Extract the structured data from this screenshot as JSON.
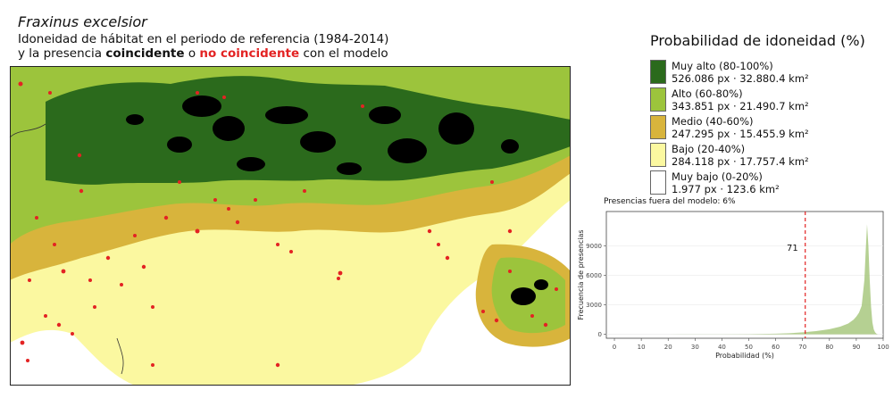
{
  "header": {
    "species": "Fraxinus excelsior",
    "line1": "Idoneidad de hábitat en el periodo de referencia (1984-2014)",
    "line2_pre": "y la presencia ",
    "line2_bold": "coincidente",
    "line2_mid": " o ",
    "line2_red": "no coincidente",
    "line2_post": " con el modelo"
  },
  "legend": {
    "title": "Probabilidad de idoneidad (%)",
    "items": [
      {
        "label": "Muy alto (80-100%)",
        "px": "526.086 px",
        "sep": "·",
        "area": "32.880.4 km²",
        "color": "#2b6a1c"
      },
      {
        "label": "Alto (60-80%)",
        "px": "343.851 px",
        "sep": "·",
        "area": "21.490.7 km²",
        "color": "#9cc43c"
      },
      {
        "label": "Medio (40-60%)",
        "px": "247.295 px",
        "sep": "·",
        "area": "15.455.9 km²",
        "color": "#d8b43c"
      },
      {
        "label": "Bajo (20-40%)",
        "px": "284.118 px",
        "sep": "·",
        "area": "17.757.4 km²",
        "color": "#fbf8a0"
      },
      {
        "label": "Muy bajo (0-20%)",
        "px": "1.977 px",
        "sep": "·",
        "area": "123.6 km²",
        "color": "#ffffff"
      }
    ]
  },
  "histogram": {
    "title": "Presencias fuera del modelo: 6%",
    "xlabel": "Probabilidad (%)",
    "ylabel": "Frecuencia de presencias",
    "threshold": 71,
    "threshold_label": "71"
  },
  "colors": {
    "muy_alto": "#2b6a1c",
    "alto": "#9cc43c",
    "medio": "#d8b43c",
    "bajo": "#fbf8a0",
    "presence_match": "#000000",
    "presence_mismatch": "#e32323",
    "density_fill": "#9cc06e",
    "threshold_line": "#e32323"
  },
  "chart_data": {
    "type": "area",
    "xlabel": "Probabilidad (%)",
    "ylabel": "Frecuencia de presencias",
    "title": "Presencias fuera del modelo: 6%",
    "xlim": [
      -3,
      100
    ],
    "ylim": [
      -400,
      12500
    ],
    "x_ticks": [
      0,
      10,
      20,
      30,
      40,
      50,
      60,
      70,
      80,
      90,
      100
    ],
    "y_ticks": [
      0,
      3000,
      6000,
      9000
    ],
    "x": [
      0,
      20,
      40,
      50,
      60,
      65,
      70,
      75,
      80,
      84,
      87,
      89,
      90,
      91,
      92,
      93,
      93.5,
      94,
      94.5,
      95,
      95.5,
      96,
      96.5,
      97,
      97.5,
      98
    ],
    "values": [
      0,
      2,
      10,
      25,
      60,
      110,
      200,
      330,
      520,
      780,
      1100,
      1500,
      1800,
      2200,
      2900,
      5500,
      8500,
      11200,
      9000,
      5500,
      2800,
      1200,
      500,
      200,
      60,
      0
    ],
    "threshold": 71
  }
}
